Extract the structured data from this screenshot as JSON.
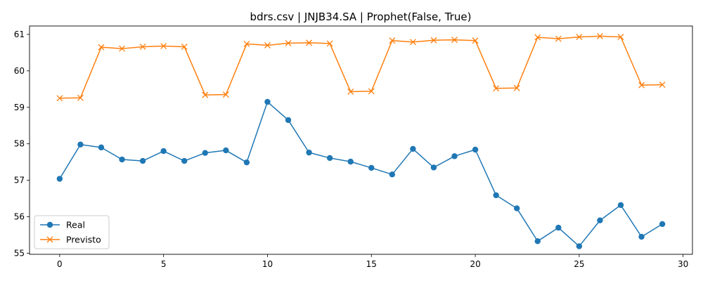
{
  "chart_data": {
    "type": "line",
    "title": "bdrs.csv | JNJB34.SA | Prophet(False, True)",
    "xlabel": "",
    "ylabel": "",
    "xlim": [
      -1.45,
      30.45
    ],
    "ylim": [
      54.97,
      61.23
    ],
    "xticks": [
      0,
      5,
      10,
      15,
      20,
      25,
      30
    ],
    "yticks": [
      55,
      56,
      57,
      58,
      59,
      60,
      61
    ],
    "grid": false,
    "legend_position": "lower-left",
    "x": [
      0,
      1,
      2,
      3,
      4,
      5,
      6,
      7,
      8,
      9,
      10,
      11,
      12,
      13,
      14,
      15,
      16,
      17,
      18,
      19,
      20,
      21,
      22,
      23,
      24,
      25,
      26,
      27,
      28,
      29
    ],
    "series": [
      {
        "name": "Real",
        "color": "#1f77b4",
        "marker": "circle",
        "values": [
          57.04,
          57.98,
          57.9,
          57.57,
          57.53,
          57.8,
          57.53,
          57.75,
          57.82,
          57.49,
          59.15,
          58.65,
          57.76,
          57.61,
          57.51,
          57.34,
          57.16,
          57.86,
          57.35,
          57.66,
          57.84,
          56.59,
          56.23,
          55.33,
          55.7,
          55.19,
          55.9,
          56.32,
          55.45,
          55.8
        ]
      },
      {
        "name": "Previsto",
        "color": "#ff7f0e",
        "marker": "x",
        "values": [
          59.25,
          59.26,
          60.65,
          60.61,
          60.66,
          60.68,
          60.66,
          59.34,
          59.35,
          60.74,
          60.7,
          60.76,
          60.77,
          60.75,
          59.43,
          59.44,
          60.83,
          60.79,
          60.84,
          60.85,
          60.83,
          59.52,
          59.53,
          60.92,
          60.88,
          60.93,
          60.95,
          60.93,
          59.61,
          59.62
        ]
      }
    ]
  }
}
